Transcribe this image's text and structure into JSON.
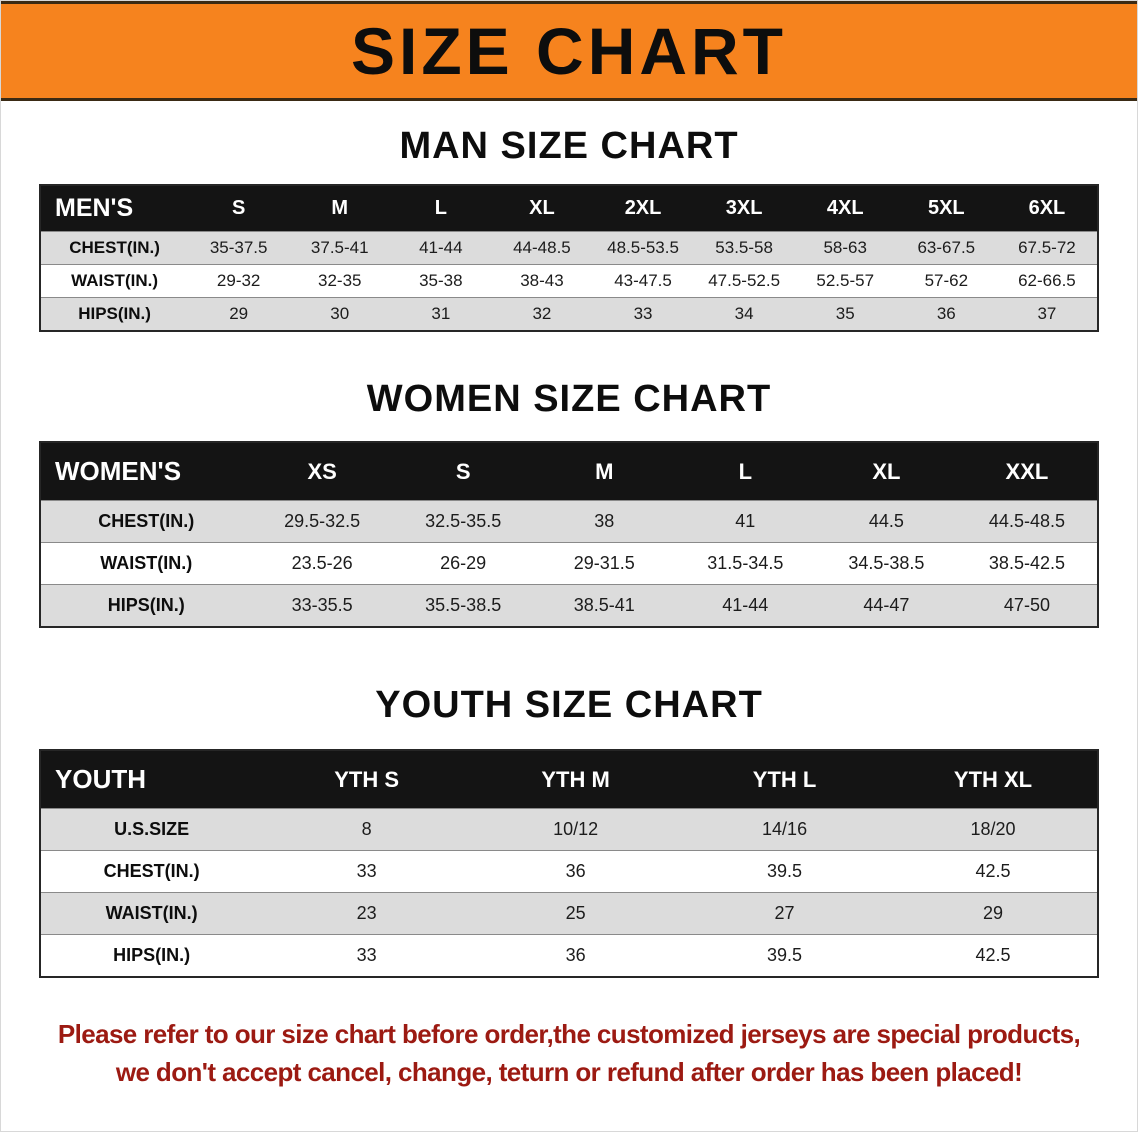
{
  "banner": {
    "title": "SIZE CHART",
    "bg_color": "#f6831e"
  },
  "sections": {
    "men": {
      "title": "MAN SIZE CHART",
      "table": {
        "header": [
          "MEN'S",
          "S",
          "M",
          "L",
          "XL",
          "2XL",
          "3XL",
          "4XL",
          "5XL",
          "6XL"
        ],
        "rows": [
          [
            "CHEST(IN.)",
            "35-37.5",
            "37.5-41",
            "41-44",
            "44-48.5",
            "48.5-53.5",
            "53.5-58",
            "58-63",
            "63-67.5",
            "67.5-72"
          ],
          [
            "WAIST(IN.)",
            "29-32",
            "32-35",
            "35-38",
            "38-43",
            "43-47.5",
            "47.5-52.5",
            "52.5-57",
            "57-62",
            "62-66.5"
          ],
          [
            "HIPS(IN.)",
            "29",
            "30",
            "31",
            "32",
            "33",
            "34",
            "35",
            "36",
            "37"
          ]
        ]
      }
    },
    "women": {
      "title": "WOMEN SIZE CHART",
      "table": {
        "header": [
          "WOMEN'S",
          "XS",
          "S",
          "M",
          "L",
          "XL",
          "XXL"
        ],
        "rows": [
          [
            "CHEST(IN.)",
            "29.5-32.5",
            "32.5-35.5",
            "38",
            "41",
            "44.5",
            "44.5-48.5"
          ],
          [
            "WAIST(IN.)",
            "23.5-26",
            "26-29",
            "29-31.5",
            "31.5-34.5",
            "34.5-38.5",
            "38.5-42.5"
          ],
          [
            "HIPS(IN.)",
            "33-35.5",
            "35.5-38.5",
            "38.5-41",
            "41-44",
            "44-47",
            "47-50"
          ]
        ]
      }
    },
    "youth": {
      "title": "YOUTH SIZE CHART",
      "table": {
        "header": [
          "YOUTH",
          "YTH S",
          "YTH M",
          "YTH L",
          "YTH XL"
        ],
        "rows": [
          [
            "U.S.SIZE",
            "8",
            "10/12",
            "14/16",
            "18/20"
          ],
          [
            "CHEST(IN.)",
            "33",
            "36",
            "39.5",
            "42.5"
          ],
          [
            "WAIST(IN.)",
            "23",
            "25",
            "27",
            "29"
          ],
          [
            "HIPS(IN.)",
            "33",
            "36",
            "39.5",
            "42.5"
          ]
        ]
      }
    }
  },
  "footer": {
    "line1": "Please refer to our size chart before order,the customized jerseys are special products,",
    "line2": "we don't accept cancel, change, teturn or refund after order has been placed!",
    "color": "#9c1a12"
  }
}
